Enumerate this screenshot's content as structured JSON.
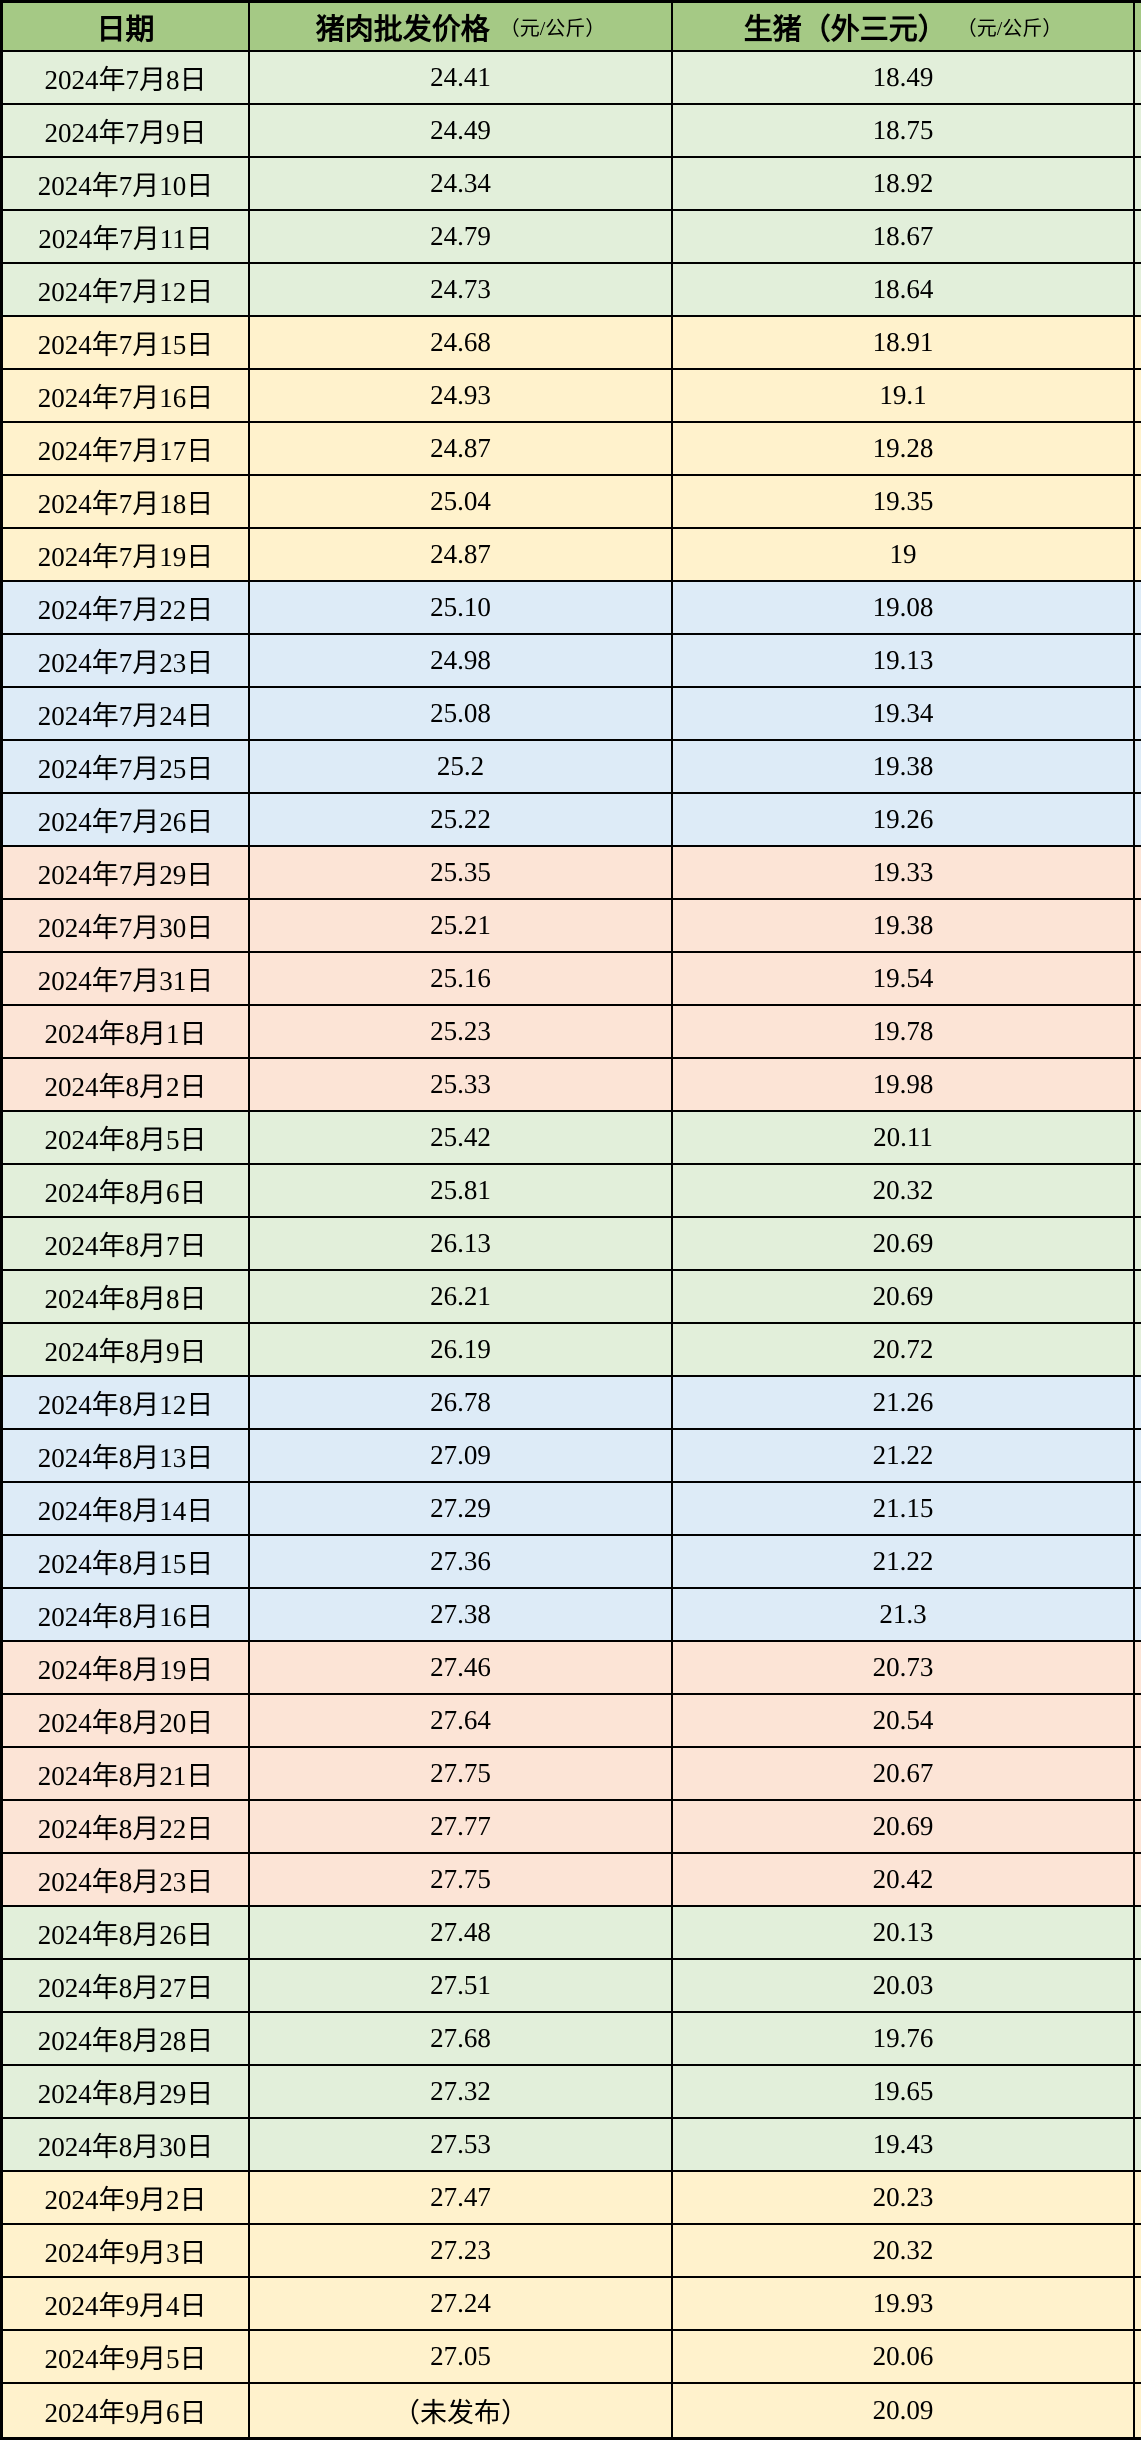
{
  "colors": {
    "header": "#A5C985",
    "green": "#E2EFDA",
    "yellow": "#FFF2CC",
    "blue": "#DDEBF7",
    "pink": "#FCE4D6",
    "border": "#000000",
    "text": "#000000"
  },
  "chart_data": {
    "type": "table",
    "title": "",
    "columns": [
      {
        "label": "日期",
        "unit": ""
      },
      {
        "label": "猪肉批发价格",
        "unit": "（元/公斤）"
      },
      {
        "label": "生猪（外三元）",
        "unit": "（元/公斤）"
      }
    ],
    "row_groups": [
      {
        "color": "green",
        "rows": [
          [
            "2024年7月8日",
            "24.41",
            "18.49"
          ],
          [
            "2024年7月9日",
            "24.49",
            "18.75"
          ],
          [
            "2024年7月10日",
            "24.34",
            "18.92"
          ],
          [
            "2024年7月11日",
            "24.79",
            "18.67"
          ],
          [
            "2024年7月12日",
            "24.73",
            "18.64"
          ]
        ]
      },
      {
        "color": "yellow",
        "rows": [
          [
            "2024年7月15日",
            "24.68",
            "18.91"
          ],
          [
            "2024年7月16日",
            "24.93",
            "19.1"
          ],
          [
            "2024年7月17日",
            "24.87",
            "19.28"
          ],
          [
            "2024年7月18日",
            "25.04",
            "19.35"
          ],
          [
            "2024年7月19日",
            "24.87",
            "19"
          ]
        ]
      },
      {
        "color": "blue",
        "rows": [
          [
            "2024年7月22日",
            "25.10",
            "19.08"
          ],
          [
            "2024年7月23日",
            "24.98",
            "19.13"
          ],
          [
            "2024年7月24日",
            "25.08",
            "19.34"
          ],
          [
            "2024年7月25日",
            "25.2",
            "19.38"
          ],
          [
            "2024年7月26日",
            "25.22",
            "19.26"
          ]
        ]
      },
      {
        "color": "pink",
        "rows": [
          [
            "2024年7月29日",
            "25.35",
            "19.33"
          ],
          [
            "2024年7月30日",
            "25.21",
            "19.38"
          ],
          [
            "2024年7月31日",
            "25.16",
            "19.54"
          ],
          [
            "2024年8月1日",
            "25.23",
            "19.78"
          ],
          [
            "2024年8月2日",
            "25.33",
            "19.98"
          ]
        ]
      },
      {
        "color": "green",
        "rows": [
          [
            "2024年8月5日",
            "25.42",
            "20.11"
          ],
          [
            "2024年8月6日",
            "25.81",
            "20.32"
          ],
          [
            "2024年8月7日",
            "26.13",
            "20.69"
          ],
          [
            "2024年8月8日",
            "26.21",
            "20.69"
          ],
          [
            "2024年8月9日",
            "26.19",
            "20.72"
          ]
        ]
      },
      {
        "color": "blue",
        "rows": [
          [
            "2024年8月12日",
            "26.78",
            "21.26"
          ],
          [
            "2024年8月13日",
            "27.09",
            "21.22"
          ],
          [
            "2024年8月14日",
            "27.29",
            "21.15"
          ],
          [
            "2024年8月15日",
            "27.36",
            "21.22"
          ],
          [
            "2024年8月16日",
            "27.38",
            "21.3"
          ]
        ]
      },
      {
        "color": "pink",
        "rows": [
          [
            "2024年8月19日",
            "27.46",
            "20.73"
          ],
          [
            "2024年8月20日",
            "27.64",
            "20.54"
          ],
          [
            "2024年8月21日",
            "27.75",
            "20.67"
          ],
          [
            "2024年8月22日",
            "27.77",
            "20.69"
          ],
          [
            "2024年8月23日",
            "27.75",
            "20.42"
          ]
        ]
      },
      {
        "color": "green",
        "rows": [
          [
            "2024年8月26日",
            "27.48",
            "20.13"
          ],
          [
            "2024年8月27日",
            "27.51",
            "20.03"
          ],
          [
            "2024年8月28日",
            "27.68",
            "19.76"
          ],
          [
            "2024年8月29日",
            "27.32",
            "19.65"
          ],
          [
            "2024年8月30日",
            "27.53",
            "19.43"
          ]
        ]
      },
      {
        "color": "yellow",
        "rows": [
          [
            "2024年9月2日",
            "27.47",
            "20.23"
          ],
          [
            "2024年9月3日",
            "27.23",
            "20.32"
          ],
          [
            "2024年9月4日",
            "27.24",
            "19.93"
          ],
          [
            "2024年9月5日",
            "27.05",
            "20.06"
          ],
          [
            "2024年9月6日",
            "（未发布）",
            "20.09"
          ]
        ]
      }
    ]
  }
}
